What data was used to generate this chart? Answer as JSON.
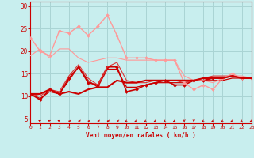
{
  "xlabel": "Vent moyen/en rafales ( km/h )",
  "xlim": [
    0,
    23
  ],
  "ylim": [
    4,
    31
  ],
  "yticks": [
    5,
    10,
    15,
    20,
    25,
    30
  ],
  "xticks": [
    0,
    1,
    2,
    3,
    4,
    5,
    6,
    7,
    8,
    9,
    10,
    11,
    12,
    13,
    14,
    15,
    16,
    17,
    18,
    19,
    20,
    21,
    22,
    23
  ],
  "bg_color": "#c8eeee",
  "grid_color": "#aad4d4",
  "label_color": "#cc0000",
  "lines": [
    {
      "x": [
        0,
        1,
        2,
        3,
        4,
        5,
        6,
        7,
        8,
        9,
        10,
        11,
        12,
        13,
        14,
        15,
        16,
        17,
        18,
        19,
        20,
        21,
        22,
        23
      ],
      "y": [
        10.5,
        9.2,
        11.5,
        10.5,
        14.0,
        16.5,
        13.0,
        12.5,
        16.5,
        16.5,
        11.0,
        11.5,
        12.5,
        13.0,
        13.5,
        12.5,
        12.5,
        13.5,
        13.5,
        14.0,
        14.0,
        14.5,
        14.0,
        14.0
      ],
      "color": "#cc0000",
      "lw": 1.2,
      "marker": "D",
      "ms": 2.0
    },
    {
      "x": [
        0,
        1,
        2,
        3,
        4,
        5,
        6,
        7,
        8,
        9,
        10,
        11,
        12,
        13,
        14,
        15,
        16,
        17,
        18,
        19,
        20,
        21,
        22,
        23
      ],
      "y": [
        10.5,
        9.5,
        11.0,
        10.5,
        13.5,
        16.5,
        13.5,
        12.0,
        16.0,
        16.0,
        12.0,
        12.0,
        12.5,
        13.0,
        13.0,
        13.0,
        13.0,
        13.5,
        13.5,
        13.5,
        13.5,
        14.0,
        14.0,
        14.0
      ],
      "color": "#cc0000",
      "lw": 0.9,
      "marker": null,
      "ms": 0
    },
    {
      "x": [
        0,
        1,
        2,
        3,
        4,
        5,
        6,
        7,
        8,
        9,
        10,
        11,
        12,
        13,
        14,
        15,
        16,
        17,
        18,
        19,
        20,
        21,
        22,
        23
      ],
      "y": [
        10.5,
        10.0,
        11.5,
        11.0,
        14.5,
        17.0,
        14.0,
        12.5,
        16.5,
        17.5,
        13.5,
        13.0,
        13.0,
        13.5,
        13.5,
        13.5,
        13.0,
        13.5,
        14.0,
        14.5,
        14.5,
        14.5,
        14.0,
        14.0
      ],
      "color": "#dd3333",
      "lw": 0.8,
      "marker": null,
      "ms": 0
    },
    {
      "x": [
        0,
        1,
        2,
        3,
        4,
        5,
        6,
        7,
        8,
        9,
        10,
        11,
        12,
        13,
        14,
        15,
        16,
        17,
        18,
        19,
        20,
        21,
        22,
        23
      ],
      "y": [
        23.0,
        20.0,
        19.0,
        24.5,
        24.0,
        25.5,
        23.5,
        25.5,
        28.0,
        23.5,
        18.5,
        18.5,
        18.5,
        18.0,
        18.0,
        18.0,
        13.0,
        11.5,
        12.5,
        11.5,
        14.0,
        15.0,
        14.0,
        14.0
      ],
      "color": "#ff9999",
      "lw": 1.0,
      "marker": "D",
      "ms": 2.0
    },
    {
      "x": [
        0,
        1,
        2,
        3,
        4,
        5,
        6,
        7,
        8,
        9,
        10,
        11,
        12,
        13,
        14,
        15,
        16,
        17,
        18,
        19,
        20,
        21,
        22,
        23
      ],
      "y": [
        19.0,
        20.5,
        18.5,
        20.5,
        20.5,
        18.5,
        17.5,
        18.0,
        18.5,
        18.5,
        18.0,
        18.0,
        18.0,
        18.0,
        18.0,
        18.0,
        14.5,
        13.5,
        13.5,
        13.0,
        14.0,
        14.5,
        14.5,
        14.0
      ],
      "color": "#ff9999",
      "lw": 0.8,
      "marker": null,
      "ms": 0
    },
    {
      "x": [
        0,
        1,
        2,
        3,
        4,
        5,
        6,
        7,
        8,
        9,
        10,
        11,
        12,
        13,
        14,
        15,
        16,
        17,
        18,
        19,
        20,
        21,
        22,
        23
      ],
      "y": [
        10.5,
        10.5,
        11.5,
        10.5,
        11.0,
        10.5,
        11.5,
        12.0,
        12.0,
        13.5,
        13.0,
        13.0,
        13.5,
        13.5,
        13.5,
        13.5,
        13.5,
        13.5,
        14.0,
        14.0,
        14.0,
        14.5,
        14.0,
        14.0
      ],
      "color": "#cc0000",
      "lw": 1.5,
      "marker": null,
      "ms": 0
    }
  ],
  "wind_dirs": [
    315,
    315,
    315,
    315,
    270,
    270,
    270,
    270,
    270,
    270,
    225,
    225,
    225,
    225,
    225,
    225,
    180,
    180,
    225,
    225,
    225,
    225,
    225,
    225
  ]
}
